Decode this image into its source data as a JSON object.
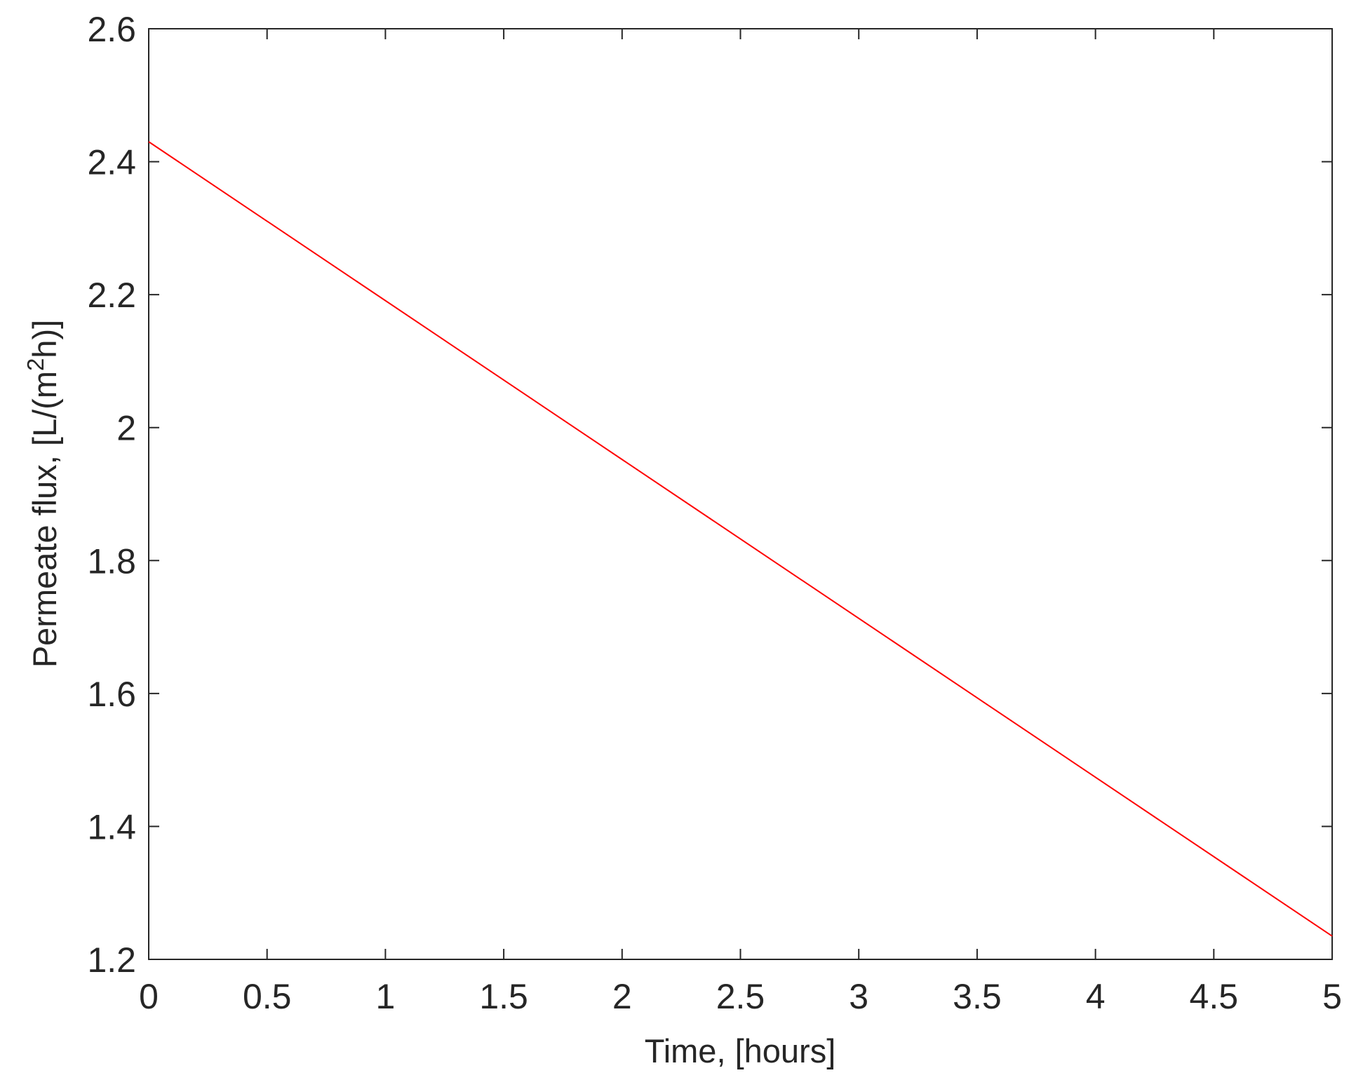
{
  "chart_data": {
    "type": "line",
    "xlabel": "Time, [hours]",
    "ylabel": {
      "text": "Permeate flux, [L/(m",
      "superscript": "2",
      "after": "h)]"
    },
    "series": [
      {
        "color": "#ff0000",
        "x": [
          0,
          5
        ],
        "values": [
          2.43,
          1.235
        ]
      }
    ],
    "xlim": [
      0,
      5
    ],
    "xticks": [
      0,
      0.5,
      1,
      1.5,
      2,
      2.5,
      3,
      3.5,
      4,
      4.5,
      5
    ],
    "ylim": [
      1.2,
      2.6
    ],
    "yticks": [
      1.2,
      1.4,
      1.6,
      1.8,
      2,
      2.2,
      2.4,
      2.6
    ],
    "grid": false
  }
}
